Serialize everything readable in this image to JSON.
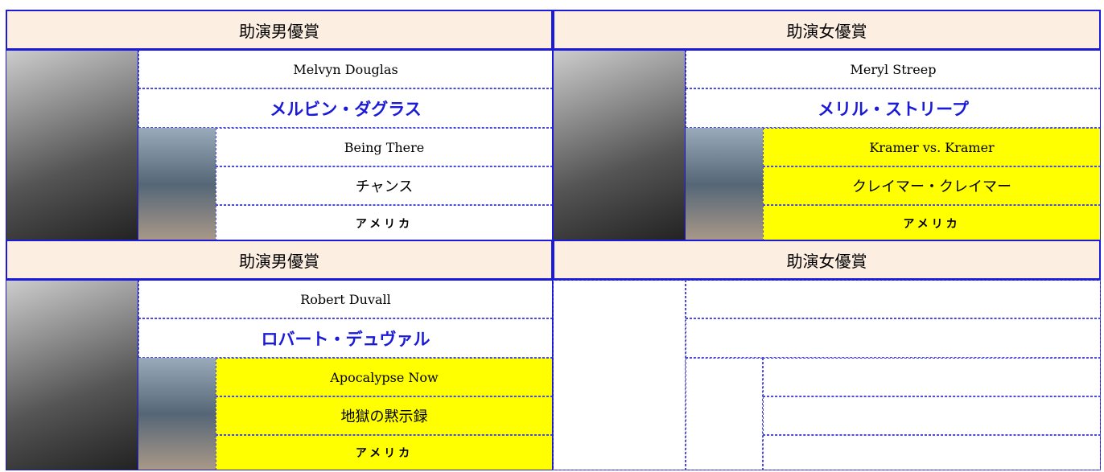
{
  "awards": [
    {
      "category": "助演男優賞",
      "name_en": "Melvyn Douglas",
      "name_ja": "メルビン・ダグラス",
      "film_en": "Being There",
      "film_ja": "チャンス",
      "country": "アメリカ",
      "highlight": false
    },
    {
      "category": "助演女優賞",
      "name_en": "Meryl Streep",
      "name_ja": "メリル・ストリープ",
      "film_en": "Kramer vs. Kramer",
      "film_ja": "クレイマー・クレイマー",
      "country": "アメリカ",
      "highlight": true
    },
    {
      "category": "助演男優賞",
      "name_en": "Robert Duvall",
      "name_ja": "ロバート・デュヴァル",
      "film_en": "Apocalypse Now",
      "film_ja": "地獄の黙示録",
      "country": "アメリカ",
      "highlight": true
    },
    {
      "category": "助演女優賞"
    }
  ]
}
